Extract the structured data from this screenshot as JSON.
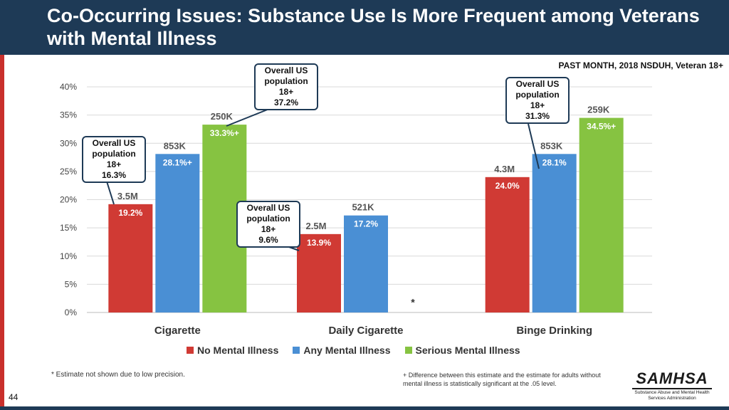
{
  "title": "Co-Occurring Issues: Substance Use Is More Frequent among Veterans with Mental Illness",
  "subtitle": "PAST MONTH, 2018 NSDUH, Veteran 18+",
  "chart_data": {
    "type": "bar",
    "categories": [
      "Cigarette",
      "Daily Cigarette",
      "Binge Drinking"
    ],
    "series": [
      {
        "name": "No Mental Illness",
        "color": "#d03a34",
        "values": [
          19.2,
          13.9,
          24.0
        ],
        "value_labels": [
          "19.2%",
          "13.9%",
          "24.0%"
        ],
        "counts": [
          "3.5M",
          "2.5M",
          "4.3M"
        ]
      },
      {
        "name": "Any Mental Illness",
        "color": "#4a8fd4",
        "values": [
          28.1,
          17.2,
          28.1
        ],
        "value_labels": [
          "28.1%+",
          "17.2%",
          "28.1%"
        ],
        "counts": [
          "853K",
          "521K",
          "853K"
        ]
      },
      {
        "name": "Serious Mental Illness",
        "color": "#86c341",
        "values": [
          33.3,
          null,
          34.5
        ],
        "value_labels": [
          "33.3%+",
          "",
          "34.5%+"
        ],
        "counts": [
          "250K",
          "",
          "259K"
        ]
      }
    ],
    "suppressed_marker": "*",
    "ylim": [
      0,
      40
    ],
    "yticks": [
      "0%",
      "5%",
      "10%",
      "15%",
      "20%",
      "25%",
      "30%",
      "35%",
      "40%"
    ],
    "grid": true,
    "legend": "bottom"
  },
  "callouts": [
    {
      "lines": [
        "Overall US",
        "population",
        "18+",
        "16.3%"
      ]
    },
    {
      "lines": [
        "Overall US",
        "population",
        "18+",
        "37.2%"
      ]
    },
    {
      "lines": [
        "Overall US",
        "population",
        "18+",
        "9.6%"
      ]
    },
    {
      "lines": [
        "Overall US",
        "population",
        "18+",
        "31.3%"
      ]
    }
  ],
  "footnotes": {
    "left": "* Estimate not shown due to low precision.",
    "right": "+ Difference between this estimate and the estimate for adults without mental illness is statistically significant at the .05 level."
  },
  "page_number": "44",
  "logo": {
    "name": "SAMHSA",
    "subtitle": "Substance Abuse and Mental Health Services Administration"
  }
}
